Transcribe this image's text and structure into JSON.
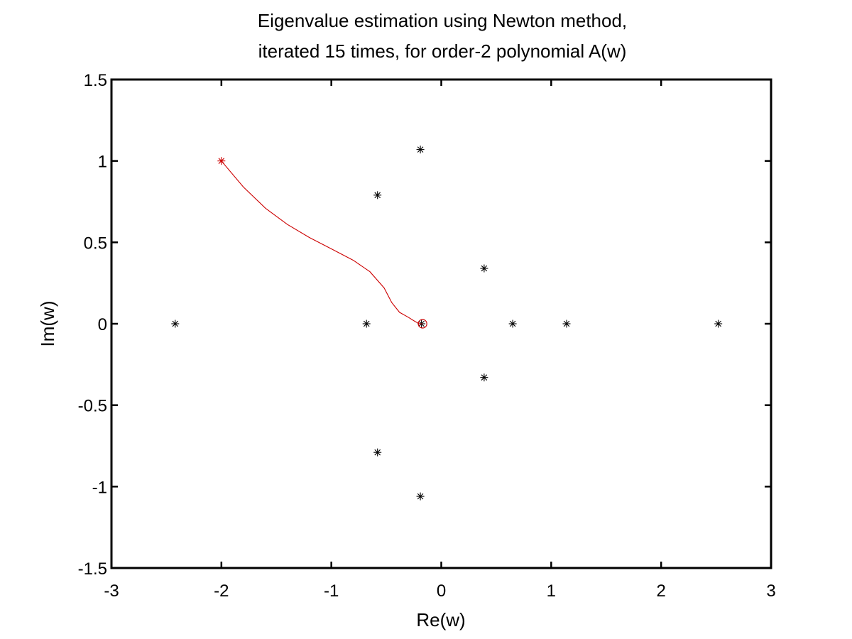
{
  "chart_data": {
    "type": "scatter",
    "title_lines": [
      "Eigenvalue estimation using Newton method,",
      "iterated 15 times, for order-2 polynomial A(w)"
    ],
    "xlabel": "Re(w)",
    "ylabel": "Im(w)",
    "xlim": [
      -3,
      3
    ],
    "ylim": [
      -1.5,
      1.5
    ],
    "xticks": [
      -3,
      -2,
      -1,
      0,
      1,
      2,
      3
    ],
    "yticks": [
      -1.5,
      -1,
      -0.5,
      0,
      0.5,
      1,
      1.5
    ],
    "xtick_labels": [
      "-3",
      "-2",
      "-1",
      "0",
      "1",
      "2",
      "3"
    ],
    "ytick_labels": [
      "-1.5",
      "-1",
      "-0.5",
      "0",
      "0.5",
      "1",
      "1.5"
    ],
    "grid": false,
    "box": true,
    "series": [
      {
        "marker": "asterisk",
        "color": "#000000",
        "points": [
          {
            "x": -2.42,
            "y": 0
          },
          {
            "x": -0.68,
            "y": 0
          },
          {
            "x": -0.18,
            "y": 0
          },
          {
            "x": 0.65,
            "y": 0
          },
          {
            "x": 1.14,
            "y": 0
          },
          {
            "x": 2.52,
            "y": 0
          },
          {
            "x": -0.58,
            "y": 0.79
          },
          {
            "x": -0.58,
            "y": -0.79
          },
          {
            "x": -0.19,
            "y": 1.07
          },
          {
            "x": -0.19,
            "y": -1.06
          },
          {
            "x": 0.39,
            "y": 0.34
          },
          {
            "x": 0.39,
            "y": -0.33
          }
        ]
      },
      {
        "marker": "asterisk",
        "color": "#cc0000",
        "points": [
          {
            "x": -2.0,
            "y": 1.0
          }
        ]
      },
      {
        "marker": "circle",
        "color": "#cc0000",
        "points": [
          {
            "x": -0.17,
            "y": 0.0
          }
        ]
      },
      {
        "marker": "line",
        "color": "#cc0000",
        "points": [
          {
            "x": -2.0,
            "y": 1.0
          },
          {
            "x": -1.8,
            "y": 0.84
          },
          {
            "x": -1.6,
            "y": 0.71
          },
          {
            "x": -1.4,
            "y": 0.61
          },
          {
            "x": -1.2,
            "y": 0.53
          },
          {
            "x": -1.0,
            "y": 0.46
          },
          {
            "x": -0.8,
            "y": 0.39
          },
          {
            "x": -0.65,
            "y": 0.32
          },
          {
            "x": -0.52,
            "y": 0.22
          },
          {
            "x": -0.45,
            "y": 0.13
          },
          {
            "x": -0.38,
            "y": 0.07
          },
          {
            "x": -0.3,
            "y": 0.04
          },
          {
            "x": -0.24,
            "y": 0.015
          },
          {
            "x": -0.2,
            "y": 0.0
          },
          {
            "x": -0.17,
            "y": 0.0
          }
        ]
      }
    ]
  }
}
